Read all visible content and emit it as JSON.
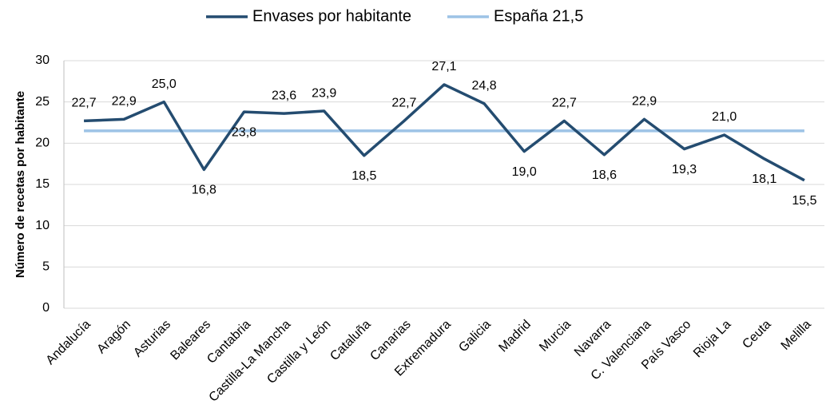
{
  "chart_data": {
    "type": "line",
    "y_label": "Número de recetas por habitante",
    "categories": [
      "Andalucía",
      "Aragón",
      "Asturias",
      "Baleares",
      "Cantabria",
      "Castilla-La Mancha",
      "Castilla y León",
      "Cataluña",
      "Canarias",
      "Extremadura",
      "Galicia",
      "Madrid",
      "Murcia",
      "Navarra",
      "C. Valenciana",
      "País Vasco",
      "Rioja La",
      "Ceuta",
      "Melilla"
    ],
    "series": [
      {
        "name": "Envases por habitante",
        "color": "#244c70",
        "values": [
          22.7,
          22.9,
          25.0,
          16.8,
          23.8,
          23.6,
          23.9,
          18.5,
          22.7,
          27.1,
          24.8,
          19.0,
          22.7,
          18.6,
          22.9,
          19.3,
          21.0,
          18.1,
          15.5
        ],
        "value_labels": [
          "22,7",
          "22,9",
          "25,0",
          "16,8",
          "23,8",
          "23,6",
          "23,9",
          "18,5",
          "22,7",
          "27,1",
          "24,8",
          "19,0",
          "22,7",
          "18,6",
          "22,9",
          "19,3",
          "21,0",
          "18,1",
          "15,5"
        ]
      },
      {
        "name": "España 21,5",
        "color": "#9dc3e6",
        "values": [
          21.5,
          21.5,
          21.5,
          21.5,
          21.5,
          21.5,
          21.5,
          21.5,
          21.5,
          21.5,
          21.5,
          21.5,
          21.5,
          21.5,
          21.5,
          21.5,
          21.5,
          21.5,
          21.5
        ]
      }
    ],
    "ylim": [
      0,
      30
    ],
    "yticks": [
      0,
      5,
      10,
      15,
      20,
      25,
      30
    ],
    "grid": true,
    "legend": "top"
  }
}
